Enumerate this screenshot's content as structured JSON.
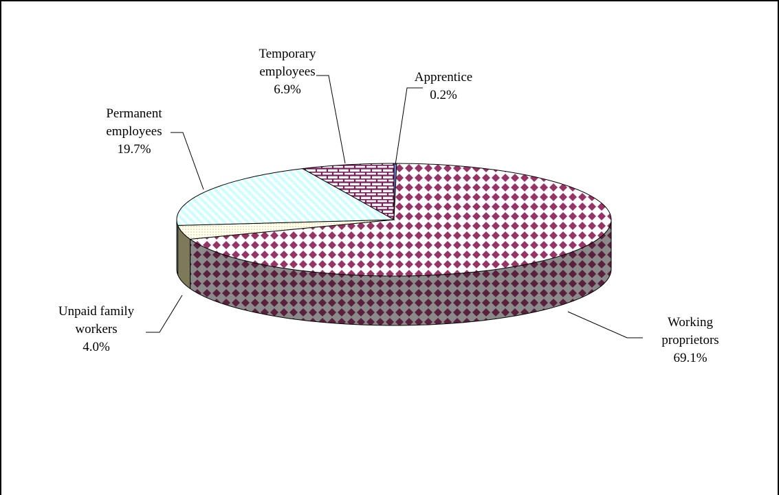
{
  "chart_data": {
    "type": "pie",
    "title": "",
    "three_d": true,
    "legend": "none",
    "slices": [
      {
        "label_lines": [
          "Apprentice"
        ],
        "pct_label": "0.2%",
        "value": 0.2,
        "color": "#6f7fd6"
      },
      {
        "label_lines": [
          "Working",
          "proprietors"
        ],
        "pct_label": "69.1%",
        "value": 69.1,
        "color": "#993366"
      },
      {
        "label_lines": [
          "Unpaid family",
          "workers"
        ],
        "pct_label": "4.0%",
        "value": 4.0,
        "color": "#ffffcc"
      },
      {
        "label_lines": [
          "Permanent",
          "employees"
        ],
        "pct_label": "19.7%",
        "value": 19.7,
        "color": "#ccffff"
      },
      {
        "label_lines": [
          "Temporary",
          "employees"
        ],
        "pct_label": "6.9%",
        "value": 6.9,
        "color": "#7a1f5c"
      }
    ]
  }
}
